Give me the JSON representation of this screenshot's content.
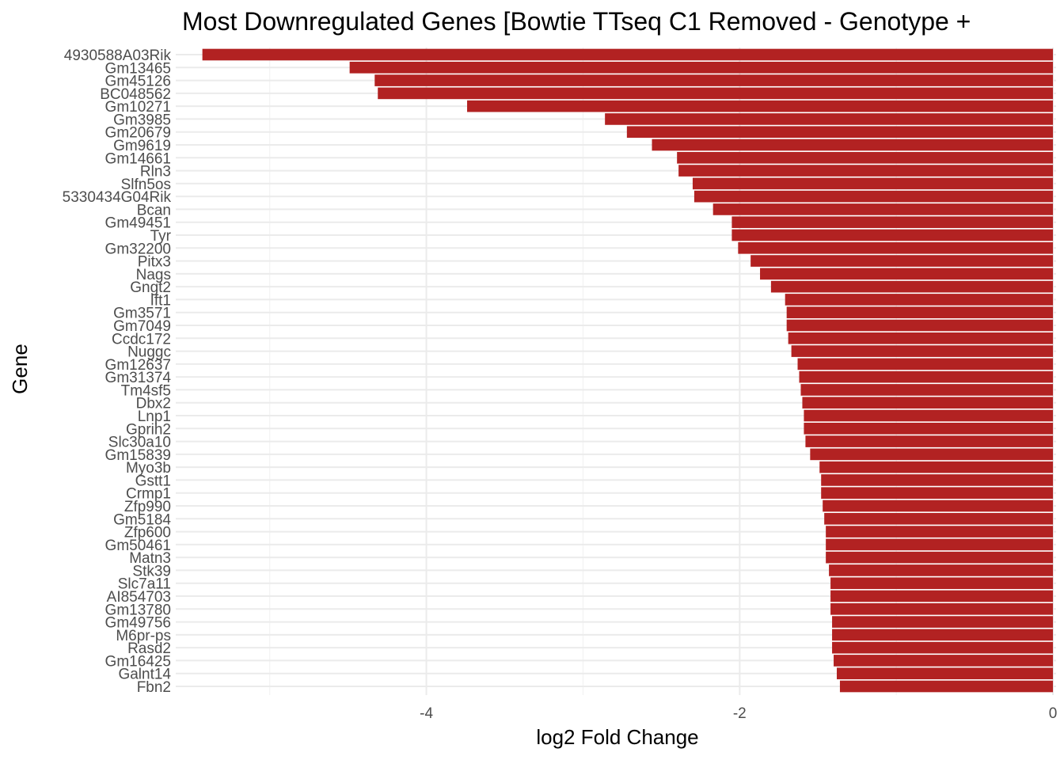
{
  "chart_data": {
    "type": "bar",
    "orientation": "horizontal",
    "title": "Most Downregulated Genes [Bowtie TTseq C1 Removed - Genotype +",
    "xlabel": "log2 Fold Change",
    "ylabel": "Gene",
    "xlim": [
      -5.6,
      0.02
    ],
    "x_ticks": [
      -4,
      -2,
      0
    ],
    "x_tick_labels": [
      "-4",
      "-2",
      "0"
    ],
    "grid": true,
    "legend": "none",
    "bar_color": "#b22222",
    "categories": [
      "4930588A03Rik",
      "Gm13465",
      "Gm45126",
      "BC048562",
      "Gm10271",
      "Gm3985",
      "Gm20679",
      "Gm9619",
      "Gm14661",
      "Rln3",
      "Slfn5os",
      "5330434G04Rik",
      "Bcan",
      "Gm49451",
      "Tyr",
      "Gm32200",
      "Pitx3",
      "Nags",
      "Gngt2",
      "Ift1",
      "Gm3571",
      "Gm7049",
      "Ccdc172",
      "Nuggc",
      "Gm12637",
      "Gm31374",
      "Tm4sf5",
      "Dbx2",
      "Lnp1",
      "Gprih2",
      "Slc30a10",
      "Gm15839",
      "Myo3b",
      "Gstt1",
      "Crmp1",
      "Zfp990",
      "Gm5184",
      "Zfp600",
      "Gm50461",
      "Matn3",
      "Stk39",
      "Slc7a11",
      "AI854703",
      "Gm13780",
      "Gm49756",
      "M6pr-ps",
      "Rasd2",
      "Gm16425",
      "Galnt14",
      "Fbn2"
    ],
    "values": [
      -5.43,
      -4.49,
      -4.33,
      -4.31,
      -3.74,
      -2.86,
      -2.72,
      -2.56,
      -2.4,
      -2.39,
      -2.3,
      -2.29,
      -2.17,
      -2.05,
      -2.05,
      -2.01,
      -1.93,
      -1.87,
      -1.8,
      -1.71,
      -1.7,
      -1.7,
      -1.69,
      -1.67,
      -1.63,
      -1.62,
      -1.61,
      -1.6,
      -1.59,
      -1.59,
      -1.58,
      -1.55,
      -1.49,
      -1.48,
      -1.48,
      -1.47,
      -1.46,
      -1.45,
      -1.45,
      -1.45,
      -1.43,
      -1.42,
      -1.42,
      -1.42,
      -1.41,
      -1.41,
      -1.41,
      -1.4,
      -1.38,
      -1.36
    ]
  }
}
